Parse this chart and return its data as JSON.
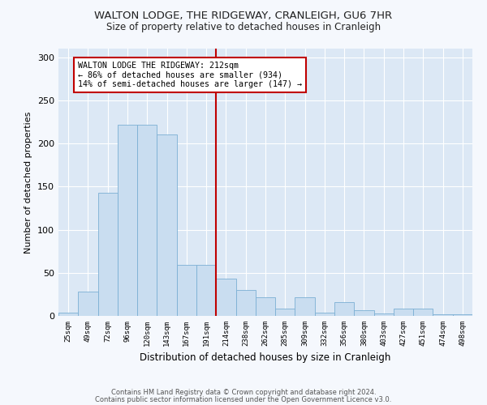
{
  "title": "WALTON LODGE, THE RIDGEWAY, CRANLEIGH, GU6 7HR",
  "subtitle": "Size of property relative to detached houses in Cranleigh",
  "xlabel": "Distribution of detached houses by size in Cranleigh",
  "ylabel": "Number of detached properties",
  "categories": [
    "25sqm",
    "49sqm",
    "72sqm",
    "96sqm",
    "120sqm",
    "143sqm",
    "167sqm",
    "191sqm",
    "214sqm",
    "238sqm",
    "262sqm",
    "285sqm",
    "309sqm",
    "332sqm",
    "356sqm",
    "380sqm",
    "403sqm",
    "427sqm",
    "451sqm",
    "474sqm",
    "498sqm"
  ],
  "values": [
    4,
    28,
    143,
    222,
    222,
    210,
    59,
    59,
    43,
    30,
    22,
    8,
    22,
    4,
    16,
    7,
    3,
    8,
    8,
    2,
    2
  ],
  "bar_color": "#c9ddf0",
  "bar_edge_color": "#7bafd4",
  "vline_color": "#c00000",
  "annotation_text": "WALTON LODGE THE RIDGEWAY: 212sqm\n← 86% of detached houses are smaller (934)\n14% of semi-detached houses are larger (147) →",
  "annotation_box_color": "#c00000",
  "ylim": [
    0,
    310
  ],
  "yticks": [
    0,
    50,
    100,
    150,
    200,
    250,
    300
  ],
  "background_color": "#dce8f5",
  "grid_color": "#ffffff",
  "fig_background": "#f5f8fd",
  "footer1": "Contains HM Land Registry data © Crown copyright and database right 2024.",
  "footer2": "Contains public sector information licensed under the Open Government Licence v3.0."
}
